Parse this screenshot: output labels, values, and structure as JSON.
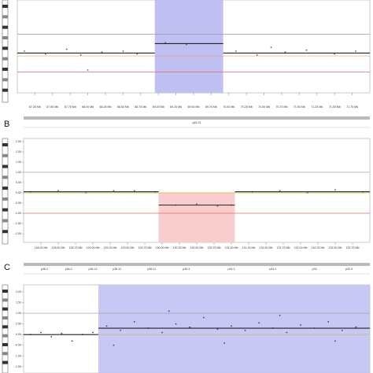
{
  "chart_data": [
    {
      "type": "scatter",
      "xlim": [
        67.0,
        72.0
      ],
      "ylim": [
        -2.1,
        2.8
      ],
      "xticks": [
        {
          "value": 67.25,
          "label": "67.25 Mb"
        },
        {
          "value": 67.5,
          "label": "67.50 Mb"
        },
        {
          "value": 67.75,
          "label": "67.75 Mb"
        },
        {
          "value": 68.0,
          "label": "68.00 Mb"
        },
        {
          "value": 68.25,
          "label": "68.25 Mb"
        },
        {
          "value": 68.5,
          "label": "68.50 Mb"
        },
        {
          "value": 68.75,
          "label": "68.75 Mb"
        },
        {
          "value": 69.0,
          "label": "69.00 Mb"
        },
        {
          "value": 69.25,
          "label": "69.25 Mb"
        },
        {
          "value": 69.5,
          "label": "69.50 Mb"
        },
        {
          "value": 69.75,
          "label": "69.75 Mb"
        },
        {
          "value": 70.0,
          "label": "70.00 Mb"
        },
        {
          "value": 70.25,
          "label": "70.25 Mb"
        },
        {
          "value": 70.5,
          "label": "70.50 Mb"
        },
        {
          "value": 70.75,
          "label": "70.75 Mb"
        },
        {
          "value": 71.0,
          "label": "71.00 Mb"
        },
        {
          "value": 71.25,
          "label": "71.25 Mb"
        },
        {
          "value": 71.5,
          "label": "71.50 Mb"
        },
        {
          "value": 71.75,
          "label": "71.75 Mb"
        }
      ],
      "reference_lines": [
        {
          "value": 1.0,
          "color": "#999999"
        },
        {
          "value": -0.15,
          "color": "#e8a060"
        },
        {
          "value": -1.0,
          "color": "#e06a6a"
        }
      ],
      "highlight": {
        "x": [
          68.95,
          69.92
        ],
        "y": [
          -2.1,
          2.8
        ],
        "color": "#b9b9f2"
      },
      "segments": [
        {
          "x": [
            67.0,
            68.95
          ],
          "value": 0.0
        },
        {
          "x": [
            68.95,
            69.92
          ],
          "value": 0.5
        },
        {
          "x": [
            69.92,
            72.0
          ],
          "value": 0.0
        }
      ],
      "segment_color": "#222222",
      "point_color": "#556655",
      "x": [
        67.1,
        67.4,
        67.7,
        67.9,
        68.2,
        68.5,
        68.7,
        69.1,
        69.4,
        69.7,
        70.1,
        70.4,
        70.8,
        71.1,
        71.5,
        71.8,
        68.0,
        70.6
      ],
      "y": [
        0.1,
        -0.05,
        0.2,
        -0.1,
        0.05,
        0.1,
        -0.05,
        0.55,
        0.45,
        0.5,
        0.1,
        -0.1,
        0.05,
        0.15,
        -0.05,
        0.1,
        -0.9,
        0.3
      ]
    },
    {
      "type": "scatter",
      "panel_label": "B",
      "xlim": [
        128.0,
        133.0
      ],
      "ylim": [
        -2.42,
        2.65
      ],
      "xticks": [
        {
          "value": 128.25,
          "label": "128.25 Mb"
        },
        {
          "value": 128.5,
          "label": "128.50 Mb"
        },
        {
          "value": 128.75,
          "label": "128.75 Mb"
        },
        {
          "value": 129.0,
          "label": "129.00 Mb"
        },
        {
          "value": 129.25,
          "label": "129.25 Mb"
        },
        {
          "value": 129.5,
          "label": "129.50 Mb"
        },
        {
          "value": 129.75,
          "label": "129.75 Mb"
        },
        {
          "value": 130.0,
          "label": "130.00 Mb"
        },
        {
          "value": 130.25,
          "label": "130.25 Mb"
        },
        {
          "value": 130.5,
          "label": "130.50 Mb"
        },
        {
          "value": 130.75,
          "label": "130.75 Mb"
        },
        {
          "value": 131.0,
          "label": "131.00 Mb"
        },
        {
          "value": 131.25,
          "label": "131.25 Mb"
        },
        {
          "value": 131.5,
          "label": "131.50 Mb"
        },
        {
          "value": 131.75,
          "label": "131.75 Mb"
        },
        {
          "value": 132.0,
          "label": "132.00 Mb"
        },
        {
          "value": 132.25,
          "label": "132.25 Mb"
        },
        {
          "value": 132.5,
          "label": "132.50 Mb"
        },
        {
          "value": 132.75,
          "label": "132.75 Mb"
        }
      ],
      "yticks": [
        {
          "value": 2.5,
          "label": "2.50"
        },
        {
          "value": 2.0,
          "label": "2.00"
        },
        {
          "value": 1.5,
          "label": "1.50"
        },
        {
          "value": 1.0,
          "label": "1.00"
        },
        {
          "value": 0.5,
          "label": "0.50"
        },
        {
          "value": 0.0,
          "label": "0.00"
        },
        {
          "value": -0.5,
          "label": "-0.50"
        },
        {
          "value": -1.0,
          "label": "-1.00"
        },
        {
          "value": -1.5,
          "label": "-1.50"
        },
        {
          "value": -2.0,
          "label": "-2.00"
        }
      ],
      "reference_lines": [
        {
          "value": 1.0,
          "color": "#999999"
        },
        {
          "value": 0.0,
          "color": "#c8c040"
        },
        {
          "value": -1.0,
          "color": "#e06a6a"
        }
      ],
      "highlight": {
        "x": [
          129.95,
          131.05
        ],
        "y": [
          -2.42,
          0.0
        ],
        "color": "#f8c8c8"
      },
      "segments": [
        {
          "x": [
            128.0,
            129.95
          ],
          "value": 0.05
        },
        {
          "x": [
            129.95,
            131.05
          ],
          "value": -0.6
        },
        {
          "x": [
            131.05,
            133.0
          ],
          "value": 0.05
        }
      ],
      "segment_color": "#222222",
      "point_color": "#556655",
      "track_labels": [
        {
          "text": "q24.31",
          "x": 130.5
        }
      ],
      "x": [
        128.1,
        128.5,
        128.9,
        129.3,
        129.6,
        129.9,
        130.2,
        130.5,
        130.8,
        131.0,
        131.3,
        131.7,
        132.1,
        132.5,
        132.9
      ],
      "y": [
        0.05,
        0.1,
        0.0,
        0.1,
        0.1,
        0.05,
        -0.6,
        -0.55,
        -0.65,
        -0.6,
        0.05,
        0.1,
        0.0,
        0.15,
        0.05
      ]
    },
    {
      "type": "scatter",
      "panel_label": "C",
      "xlim": [
        0.0,
        50.0
      ],
      "ylim": [
        -1.8,
        2.33
      ],
      "yticks": [
        {
          "value": 2.0,
          "label": "2.00"
        },
        {
          "value": 1.5,
          "label": "1.50"
        },
        {
          "value": 1.0,
          "label": "1.00"
        },
        {
          "value": 0.5,
          "label": "0.50"
        },
        {
          "value": 0.0,
          "label": "0.00"
        },
        {
          "value": -0.5,
          "label": "-0.50"
        },
        {
          "value": -1.0,
          "label": "-1.00"
        },
        {
          "value": -1.5,
          "label": "-1.50"
        }
      ],
      "reference_lines": [
        {
          "value": 1.0,
          "color": "#999999"
        },
        {
          "value": 0.0,
          "color": "#c8c040"
        }
      ],
      "highlight": {
        "x": [
          10.8,
          50.0
        ],
        "y": [
          -1.8,
          2.33
        ],
        "color": "#c2c2f4"
      },
      "segments": [
        {
          "x": [
            0.0,
            10.8
          ],
          "value": 0.0
        },
        {
          "x": [
            10.8,
            50.0
          ],
          "value": 0.3
        }
      ],
      "segment_color": "#222222",
      "point_color": "#3a3a88",
      "track_labels": [
        {
          "text": "p36.3",
          "x": 3.0
        },
        {
          "text": "p36.2",
          "x": 6.5
        },
        {
          "text": "p36.13",
          "x": 10.0
        },
        {
          "text": "p36.12",
          "x": 13.5
        },
        {
          "text": "p36.11",
          "x": 18.5
        },
        {
          "text": "p35.3",
          "x": 23.5
        },
        {
          "text": "p34.3",
          "x": 30.0
        },
        {
          "text": "p34.2",
          "x": 36.0
        },
        {
          "text": "p33",
          "x": 42.0
        },
        {
          "text": "p32.3",
          "x": 47.0
        }
      ],
      "x": [
        1,
        2.5,
        4,
        5.5,
        7,
        8.5,
        10,
        12,
        14,
        16,
        18,
        20,
        22,
        24,
        26,
        28,
        30,
        32,
        34,
        36,
        38,
        40,
        42,
        44,
        46,
        48,
        13,
        21,
        29,
        37,
        45
      ],
      "y": [
        0.0,
        0.1,
        -0.1,
        0.05,
        -0.3,
        0.0,
        0.1,
        0.4,
        0.2,
        0.6,
        0.3,
        0.1,
        0.5,
        0.35,
        0.8,
        0.25,
        0.4,
        0.2,
        0.55,
        0.3,
        0.1,
        0.45,
        0.3,
        0.6,
        0.2,
        0.35,
        -0.5,
        1.1,
        -0.4,
        0.9,
        -0.3
      ]
    }
  ]
}
